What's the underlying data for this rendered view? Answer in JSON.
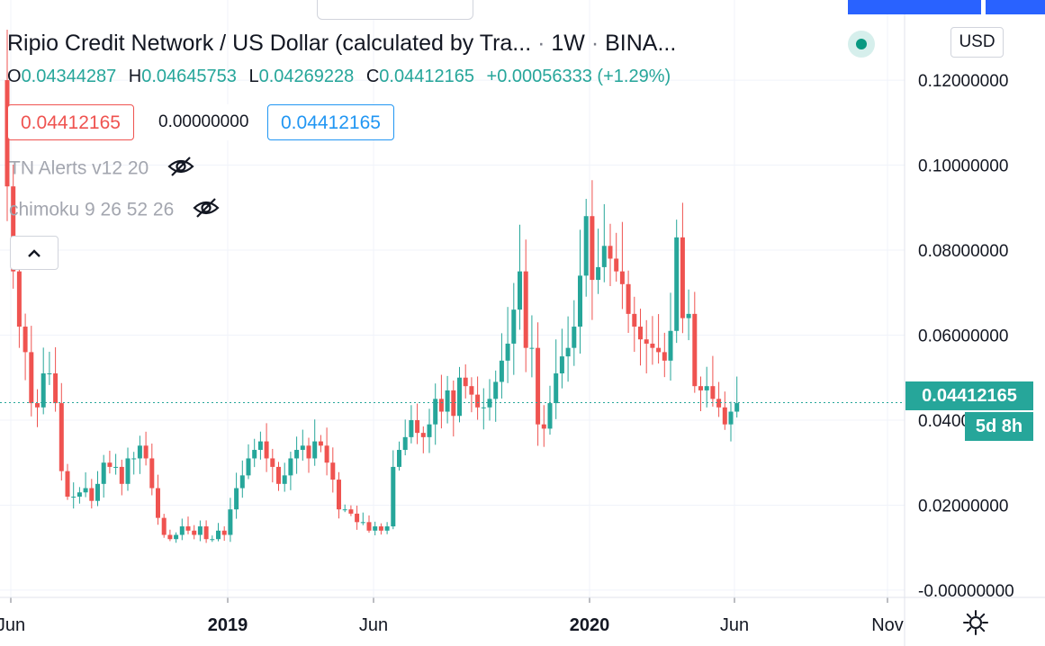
{
  "header": {
    "symbol_title": "Ripio Credit Network / US Dollar (calculated by Tra...",
    "interval": "1W",
    "exchange": "BINA...",
    "separator": "·",
    "currency_button": "USD"
  },
  "ohlc": {
    "open_label": "O",
    "open": "0.04344287",
    "high_label": "H",
    "high": "0.04645753",
    "low_label": "L",
    "low": "0.04269228",
    "close_label": "C",
    "close": "0.04412165",
    "change": "+0.00056333 (+1.29%)"
  },
  "price_boxes": {
    "bid": "0.04412165",
    "spread": "0.00000000",
    "ask": "0.04412165"
  },
  "indicators": [
    {
      "label": "TN Alerts v12 20",
      "icon": "eye-hidden-icon"
    },
    {
      "label": "chimoku 9 26 52 26",
      "icon": "eye-hidden-icon"
    }
  ],
  "last_price_label": "0.04412165",
  "countdown_label": "5d 8h",
  "settings_icon": "gear-icon",
  "collapse_icon": "chevron-up-icon",
  "colors": {
    "up": "#26a69a",
    "down": "#ef5350",
    "accent": "#2962ff",
    "grid": "#f0f3fa"
  },
  "chart_data": {
    "type": "candlestick",
    "x_labels": [
      "Jun",
      "2019",
      "Jun",
      "2020",
      "Jun",
      "Nov"
    ],
    "y_ticks": [
      "0.12000000",
      "0.10000000",
      "0.08000000",
      "0.06000000",
      "0.04000000",
      "0.02000000",
      "-0.00000000"
    ],
    "y_tick_values": [
      0.12,
      0.1,
      0.08,
      0.06,
      0.04,
      0.02,
      0.0
    ],
    "ylim": [
      -0.0015,
      0.127
    ],
    "current_price": 0.04412165,
    "close": [
      0.095,
      0.075,
      0.062,
      0.056,
      0.044,
      0.043,
      0.051,
      0.051,
      0.044,
      0.028,
      0.022,
      0.022,
      0.023,
      0.024,
      0.021,
      0.025,
      0.03,
      0.029,
      0.029,
      0.025,
      0.031,
      0.031,
      0.034,
      0.031,
      0.024,
      0.017,
      0.013,
      0.012,
      0.013,
      0.015,
      0.014,
      0.013,
      0.015,
      0.012,
      0.012,
      0.014,
      0.013,
      0.019,
      0.024,
      0.027,
      0.031,
      0.033,
      0.035,
      0.031,
      0.029,
      0.025,
      0.027,
      0.031,
      0.033,
      0.034,
      0.031,
      0.035,
      0.034,
      0.03,
      0.026,
      0.019,
      0.019,
      0.018,
      0.016,
      0.016,
      0.014,
      0.015,
      0.014,
      0.015,
      0.029,
      0.033,
      0.036,
      0.04,
      0.037,
      0.036,
      0.039,
      0.045,
      0.042,
      0.047,
      0.041,
      0.05,
      0.048,
      0.046,
      0.043,
      0.043,
      0.045,
      0.049,
      0.054,
      0.058,
      0.066,
      0.075,
      0.057,
      0.057,
      0.039,
      0.038,
      0.044,
      0.051,
      0.055,
      0.057,
      0.062,
      0.074,
      0.088,
      0.073,
      0.076,
      0.081,
      0.078,
      0.075,
      0.072,
      0.065,
      0.062,
      0.059,
      0.058,
      0.057,
      0.056,
      0.054,
      0.061,
      0.083,
      0.064,
      0.065,
      0.048,
      0.047,
      0.048,
      0.045,
      0.043,
      0.039,
      0.042,
      0.044
    ],
    "open_first": 0.12
  }
}
